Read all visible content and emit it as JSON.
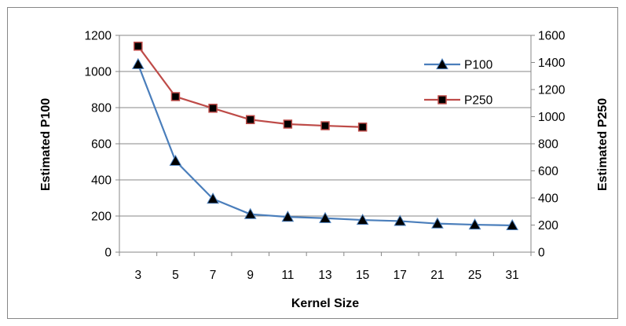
{
  "chart_data": {
    "type": "line",
    "categories": [
      "3",
      "5",
      "7",
      "9",
      "11",
      "13",
      "15",
      "17",
      "21",
      "25",
      "31"
    ],
    "xlabel": "Kernel Size",
    "ylabel_left": "Estimated P100",
    "ylabel_right": "Estimated P250",
    "ylim_left": [
      0,
      1200
    ],
    "yticks_left": [
      0,
      200,
      400,
      600,
      800,
      1000,
      1200
    ],
    "ylim_right": [
      0,
      1600
    ],
    "yticks_right": [
      0,
      200,
      400,
      600,
      800,
      1000,
      1200,
      1400,
      1600
    ],
    "grid": true,
    "legend_position": "top-right",
    "series": [
      {
        "name": "P100",
        "axis": "left",
        "marker": "triangle",
        "color": "#4a7ebb",
        "values": [
          1040,
          505,
          295,
          210,
          195,
          188,
          178,
          172,
          158,
          152,
          148
        ]
      },
      {
        "name": "P250",
        "axis": "right",
        "marker": "square",
        "color": "#be4b48",
        "values": [
          1520,
          1148,
          1062,
          978,
          945,
          933,
          923,
          null,
          null,
          null,
          null
        ]
      }
    ]
  }
}
